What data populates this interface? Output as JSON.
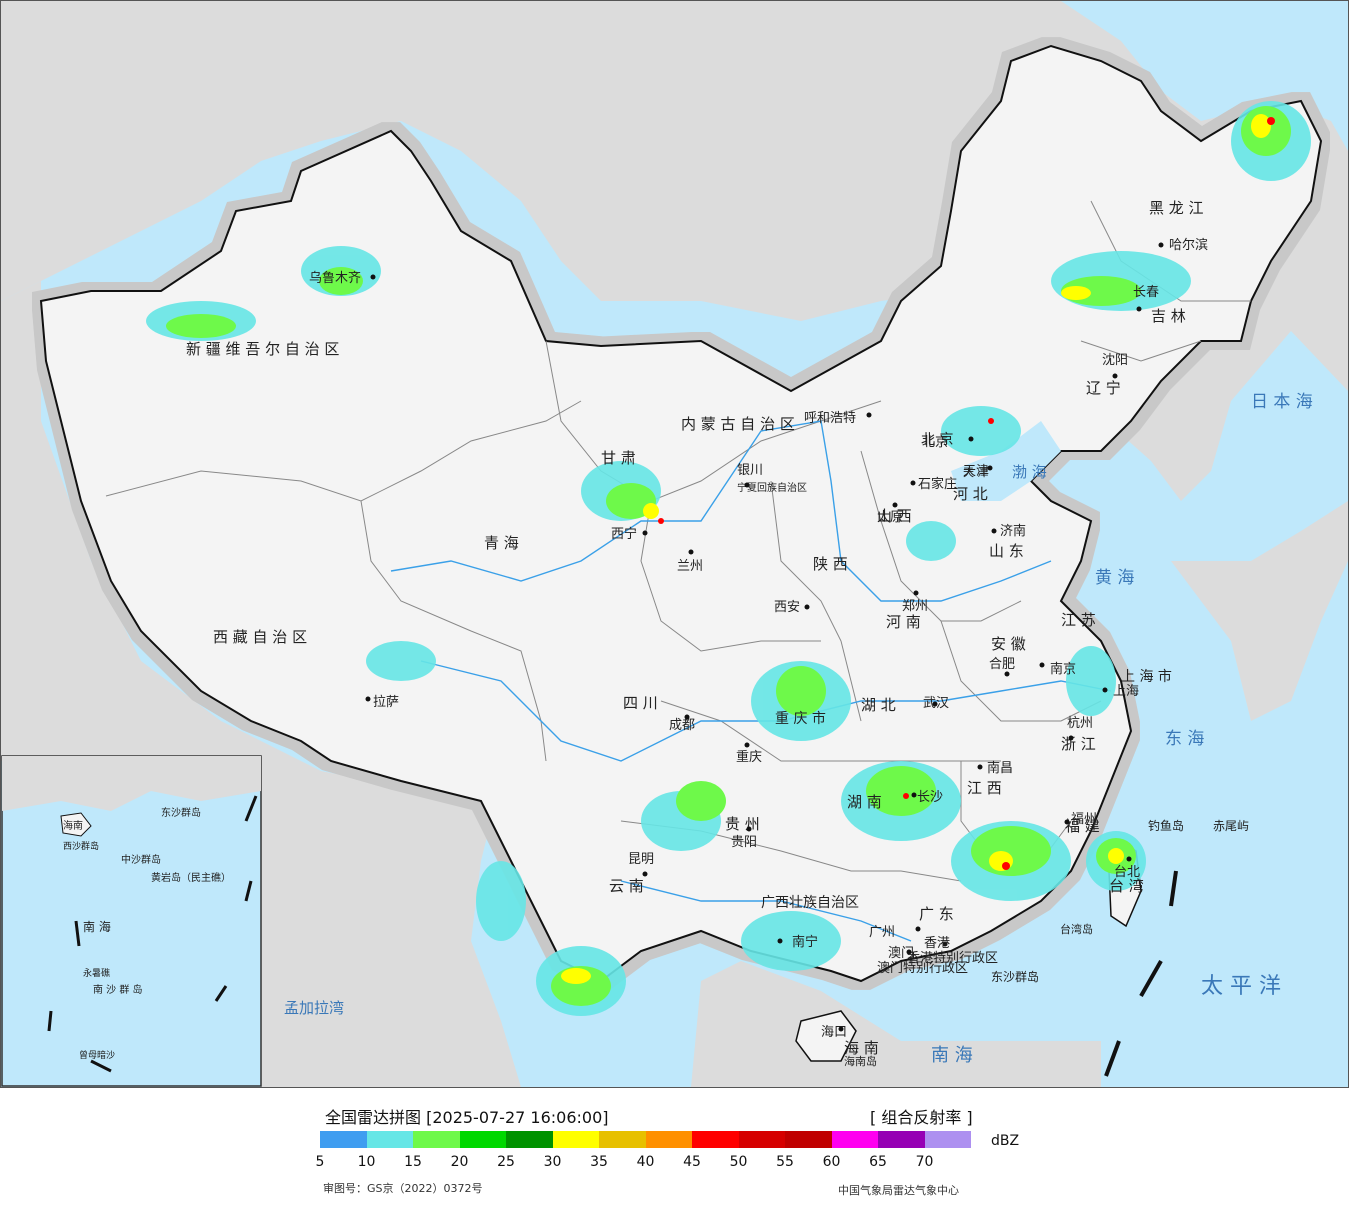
{
  "legend": {
    "title": "全国雷达拼图 [2025-07-27 16:06:00]",
    "product": "[ 组合反射率 ]",
    "unit": "dBZ",
    "ticks": [
      "5",
      "10",
      "15",
      "20",
      "25",
      "30",
      "35",
      "40",
      "45",
      "50",
      "55",
      "60",
      "65",
      "70"
    ],
    "colors": [
      "#3f9df0",
      "#66e6e6",
      "#6ef94a",
      "#00d800",
      "#009200",
      "#ffff00",
      "#e7c000",
      "#ff9000",
      "#ff0000",
      "#d60000",
      "#c00000",
      "#ff00f0",
      "#9600b4",
      "#ad90f0"
    ],
    "approval_no": "审图号：GS京（2022）0372号",
    "issuer": "中国气象局雷达气象中心"
  },
  "map": {
    "colors": {
      "sea": "#bfe8fb",
      "land": "#f4f4f4",
      "outside": "#dcdcdc",
      "border": "#111111",
      "province": "#888888",
      "river": "#3aa0e8"
    },
    "provinces": [
      "新 疆 维 吾 尔 自 治 区",
      "西 藏 自 治 区",
      "青 海",
      "甘 肃",
      "内 蒙 古 自 治 区",
      "黑 龙 江",
      "吉 林",
      "辽 宁",
      "河 北",
      "山 西",
      "陕 西",
      "宁夏回族自治区",
      "四 川",
      "云 南",
      "贵 州",
      "广西壮族自治区",
      "广 东",
      "湖 南",
      "湖 北",
      "河 南",
      "山 东",
      "江 苏",
      "安 徽",
      "浙 江",
      "江 西",
      "福 建",
      "台 湾",
      "海 南",
      "重 庆 市",
      "上 海 市",
      "北 京",
      "天 津",
      "香港特别行政区",
      "澳门特别行政区"
    ],
    "cities": [
      "乌鲁木齐",
      "拉萨",
      "西宁",
      "兰州",
      "银川",
      "呼和浩特",
      "北京",
      "天津",
      "石家庄",
      "太原",
      "济南",
      "西安",
      "郑州",
      "合肥",
      "南京",
      "上海",
      "杭州",
      "武汉",
      "成都",
      "重庆",
      "贵阳",
      "昆明",
      "长沙",
      "南昌",
      "福州",
      "台北",
      "广州",
      "香港",
      "澳门",
      "南宁",
      "海口",
      "哈尔滨",
      "长春",
      "沈阳"
    ],
    "islands": [
      "钓鱼岛",
      "赤尾屿",
      "台湾岛",
      "东沙群岛",
      "海南岛"
    ],
    "seas": [
      "日 本 海",
      "渤 海",
      "黄 海",
      "东 海",
      "南 海",
      "太 平 洋",
      "孟加拉湾"
    ],
    "inset": {
      "labels": [
        "中沙群岛",
        "黄岩岛（民主礁）",
        "南 海",
        "永暑礁",
        "南 沙 群 岛",
        "曾母暗沙",
        "西沙群岛",
        "东沙群岛",
        "海南"
      ]
    }
  }
}
